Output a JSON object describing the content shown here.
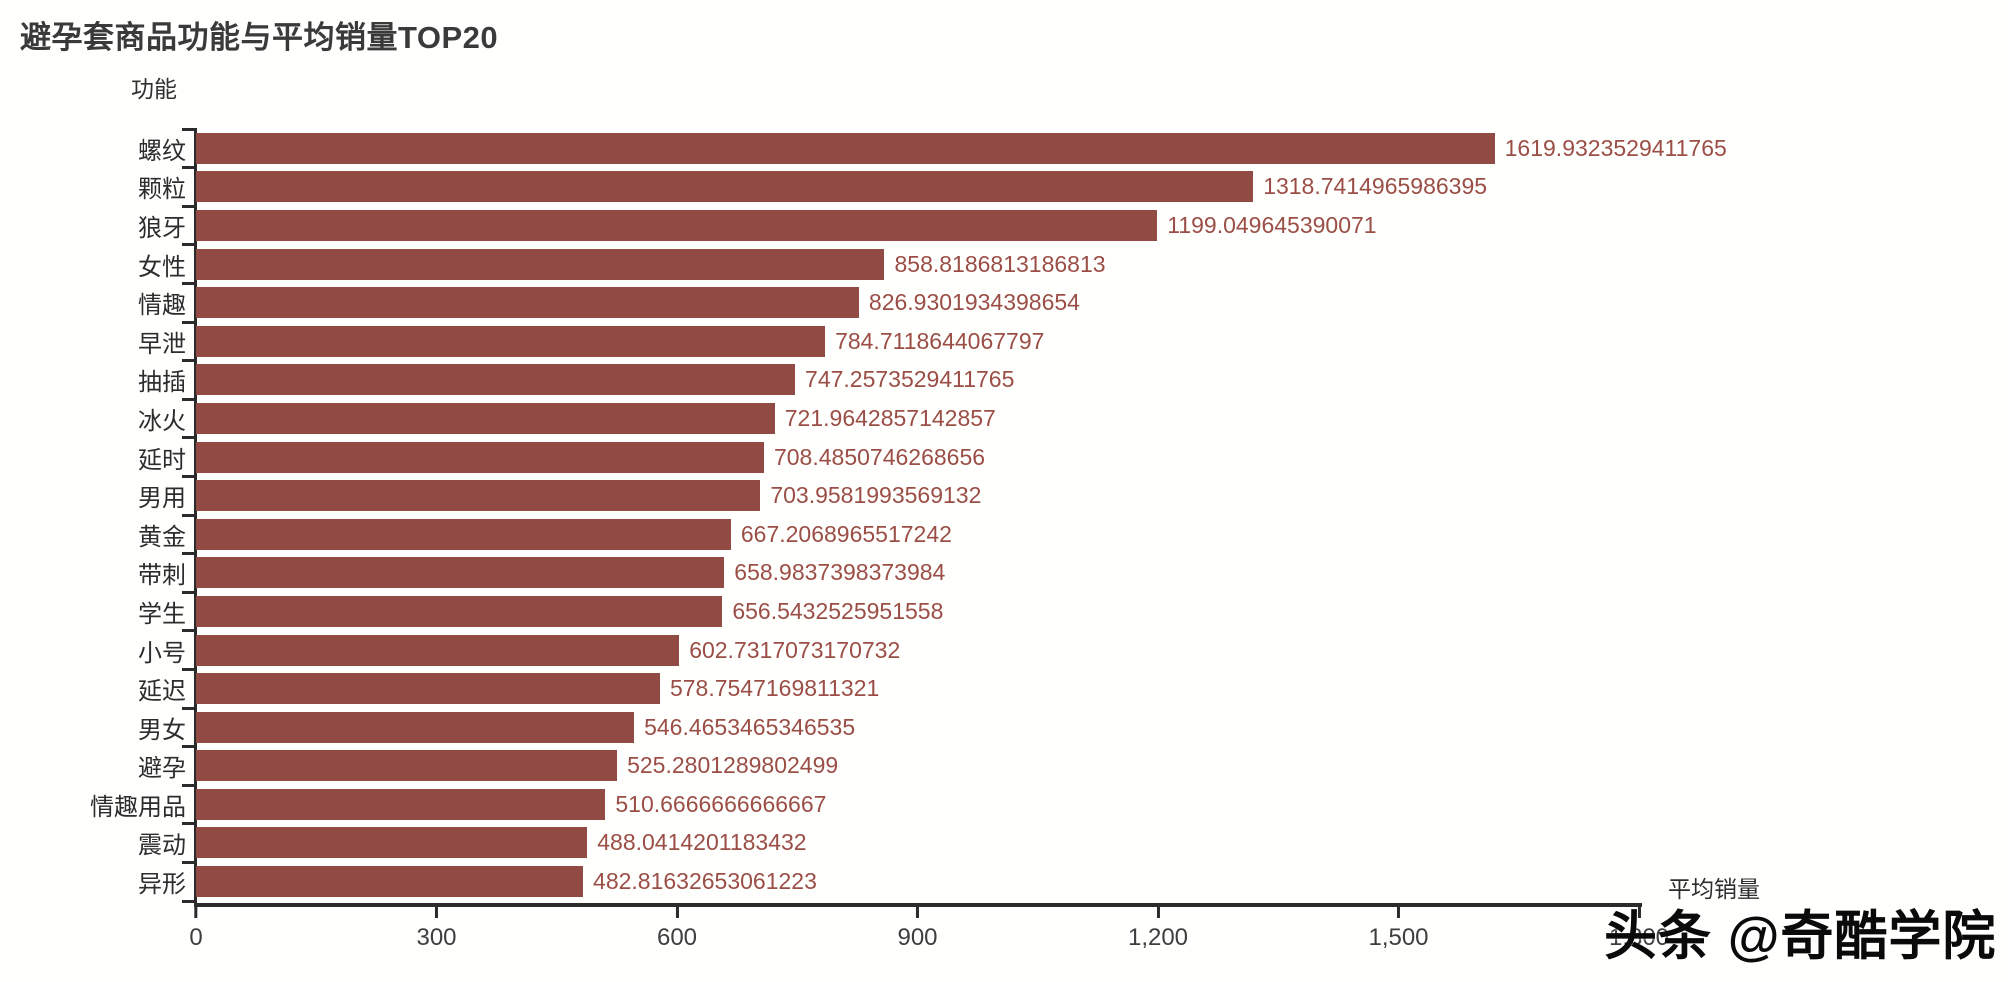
{
  "chart_data": {
    "type": "bar",
    "orientation": "horizontal",
    "title": "避孕套商品功能与平均销量TOP20",
    "ylabel": "功能",
    "xlabel": "平均销量",
    "categories": [
      "螺纹",
      "颗粒",
      "狼牙",
      "女性",
      "情趣",
      "早泄",
      "抽插",
      "冰火",
      "延时",
      "男用",
      "黄金",
      "带刺",
      "学生",
      "小号",
      "延迟",
      "男女",
      "避孕",
      "情趣用品",
      "震动",
      "异形"
    ],
    "values": [
      1619.9323529411765,
      1318.7414965986395,
      1199.049645390071,
      858.8186813186813,
      826.9301934398654,
      784.7118644067797,
      747.2573529411765,
      721.9642857142857,
      708.4850746268656,
      703.9581993569132,
      667.2068965517242,
      658.9837398373984,
      656.5432525951558,
      602.7317073170732,
      578.7547169811321,
      546.4653465346535,
      525.2801289802499,
      510.6666666666667,
      488.0414201183432,
      482.81632653061223
    ],
    "value_labels": [
      "1619.9323529411765",
      "1318.7414965986395",
      "1199.049645390071",
      "858.8186813186813",
      "826.9301934398654",
      "784.7118644067797",
      "747.2573529411765",
      "721.9642857142857",
      "708.4850746268656",
      "703.9581993569132",
      "667.2068965517242",
      "658.9837398373984",
      "656.5432525951558",
      "602.7317073170732",
      "578.7547169811321",
      "546.4653465346535",
      "525.2801289802499",
      "510.6666666666667",
      "488.0414201183432",
      "482.81632653061223"
    ],
    "xlim": [
      0,
      1800
    ],
    "xtick_labels": [
      "0",
      "300",
      "600",
      "900",
      "1,200",
      "1,500",
      "1,800"
    ],
    "grid": false,
    "legend": false,
    "bar_color": "#914a44",
    "value_label_color": "#9b4e46"
  },
  "watermark": {
    "text": "头条 @奇酷学院"
  }
}
